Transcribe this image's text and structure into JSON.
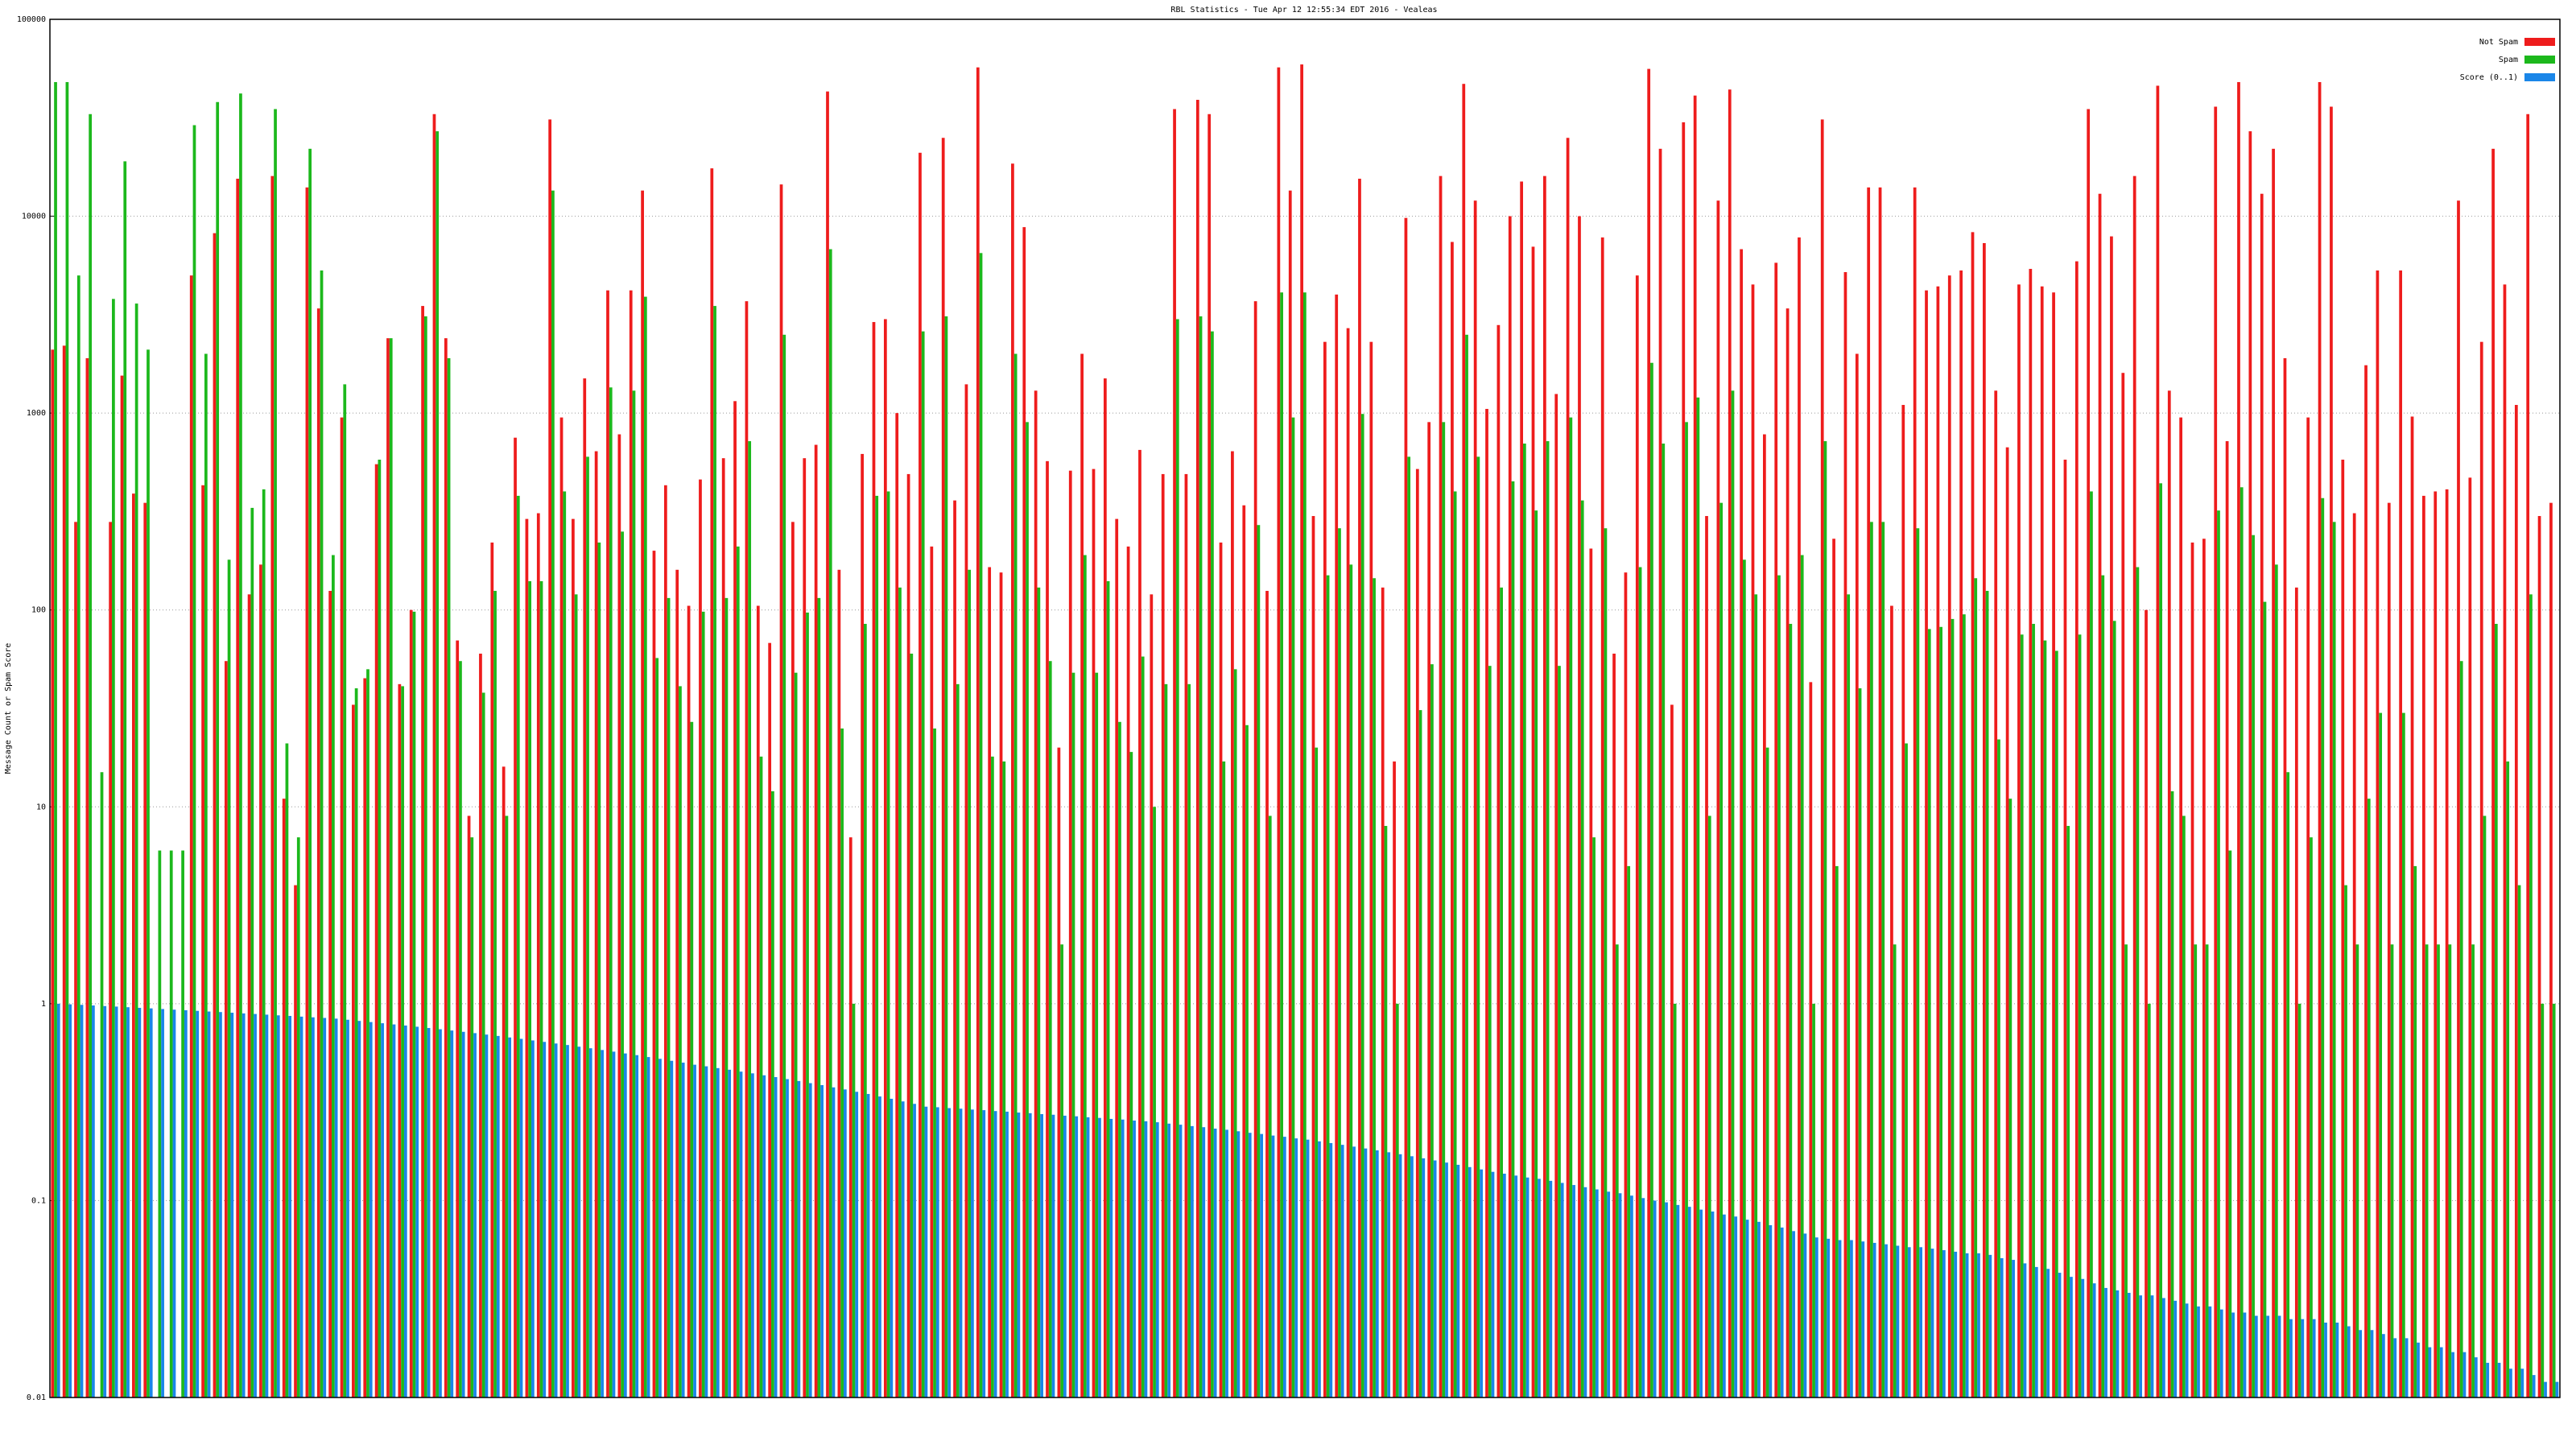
{
  "chart_data": {
    "type": "bar",
    "title": "RBL Statistics - Tue Apr 12 12:55:34 EDT 2016 - Vealeas",
    "y_label": "Message Count or Spam Score",
    "log_scale": true,
    "grid": true,
    "legend": "top-right",
    "ylim": [
      0.01,
      100000
    ],
    "yticks": [
      0.01,
      0.1,
      1,
      10,
      100,
      1000,
      10000,
      100000
    ],
    "categories": [
      null,
      null,
      null,
      null,
      null,
      null,
      null,
      null,
      null,
      null,
      null,
      null,
      null,
      null,
      null,
      null,
      null,
      null,
      null,
      null,
      null,
      null,
      null,
      null,
      null,
      null,
      null,
      null,
      null,
      null,
      null,
      null,
      null,
      null,
      null,
      null,
      null,
      null,
      null,
      null,
      null,
      null,
      null,
      null,
      null,
      null,
      null,
      null,
      null,
      null,
      null,
      null,
      null,
      null,
      null,
      null,
      null,
      null,
      null,
      null,
      null,
      null,
      null,
      null,
      null,
      null,
      null,
      null,
      null,
      null,
      null,
      null,
      null,
      null,
      null,
      null,
      null,
      null,
      null,
      null,
      null,
      null,
      null,
      null,
      null,
      null,
      null,
      null,
      null,
      null,
      null,
      null,
      null,
      null,
      null,
      null,
      null,
      null,
      null,
      null,
      null,
      null,
      null,
      null,
      null,
      null,
      null,
      null,
      null,
      null,
      null,
      null,
      null,
      null,
      null,
      null,
      null,
      null,
      null,
      null,
      null,
      null,
      null,
      null,
      null,
      null,
      null,
      null,
      null,
      null,
      null,
      null,
      null,
      null,
      null,
      null,
      null,
      null,
      null,
      null,
      null,
      null,
      null,
      null,
      null,
      null,
      null,
      null,
      null,
      null,
      null,
      null,
      null,
      null,
      null,
      null,
      null,
      null,
      null,
      null,
      null,
      null,
      null,
      null,
      null,
      null,
      null,
      null,
      null,
      null,
      null,
      null,
      null,
      null,
      null,
      null,
      null,
      null,
      null,
      null,
      null,
      null,
      null,
      null,
      null,
      null,
      null,
      null,
      null,
      null,
      null,
      null,
      null,
      null,
      null,
      null,
      null,
      null,
      null,
      null,
      null,
      null,
      null,
      null,
      null,
      null,
      null,
      null,
      null,
      null,
      null,
      null,
      null,
      null,
      null,
      null,
      null
    ],
    "series": [
      {
        "name": "Not Spam",
        "color": "#ee1c1c",
        "values": [
          2100,
          2200,
          280,
          1900,
          0,
          280,
          1550,
          390,
          350,
          0,
          0,
          0,
          5000,
          430,
          8200,
          55,
          15500,
          120,
          170,
          16000,
          11,
          4,
          14000,
          3400,
          125,
          950,
          33,
          45,
          550,
          2400,
          42,
          100,
          3500,
          33000,
          2400,
          70,
          9,
          60,
          220,
          16,
          750,
          290,
          310,
          31000,
          950,
          290,
          1500,
          640,
          4200,
          780,
          4200,
          13500,
          200,
          430,
          160,
          105,
          460,
          17500,
          590,
          1150,
          3700,
          105,
          68,
          14500,
          280,
          590,
          690,
          43000,
          160,
          7,
          620,
          2900,
          3000,
          1000,
          490,
          21000,
          210,
          25000,
          360,
          1400,
          57000,
          165,
          155,
          18500,
          8800,
          1300,
          570,
          20,
          510,
          2000,
          520,
          1500,
          290,
          210,
          650,
          120,
          490,
          35000,
          490,
          39000,
          33000,
          220,
          640,
          340,
          3700,
          125,
          57000,
          13500,
          59000,
          300,
          2300,
          4000,
          2700,
          15500,
          2300,
          130,
          17,
          9800,
          520,
          900,
          16000,
          7400,
          47000,
          12000,
          1050,
          2800,
          10000,
          15000,
          7000,
          16000,
          1250,
          25000,
          10000,
          205,
          7800,
          60,
          155,
          5000,
          56000,
          22000,
          33,
          30000,
          41000,
          300,
          12000,
          44000,
          6800,
          4500,
          780,
          5800,
          3400,
          7800,
          43,
          31000,
          230,
          5200,
          2000,
          14000,
          14000,
          105,
          1100,
          14000,
          4200,
          4400,
          5000,
          5300,
          8300,
          7300,
          1300,
          670,
          4500,
          5400,
          4400,
          4100,
          580,
          5900,
          35000,
          13000,
          7900,
          1600,
          16000,
          100,
          46000,
          1300,
          950,
          220,
          230,
          36000,
          720,
          48000,
          27000,
          13000,
          22000,
          1900,
          130,
          950,
          48000,
          36000,
          580,
          310,
          1750,
          5300,
          350,
          5300,
          960,
          380,
          400,
          410,
          12000,
          470,
          2300,
          22000,
          4500,
          1100,
          33000,
          300,
          350
        ]
      },
      {
        "name": "Spam",
        "color": "#1cb81c",
        "values": [
          48000,
          48000,
          5000,
          33000,
          15,
          3800,
          19000,
          3600,
          2100,
          6,
          6,
          6,
          29000,
          2000,
          38000,
          180,
          42000,
          330,
          410,
          35000,
          21,
          7,
          22000,
          5300,
          190,
          1400,
          40,
          50,
          580,
          2400,
          41,
          98,
          3100,
          27000,
          1900,
          55,
          7,
          38,
          125,
          9,
          380,
          140,
          140,
          13500,
          400,
          120,
          600,
          220,
          1350,
          250,
          1300,
          3900,
          57,
          115,
          41,
          27,
          98,
          3500,
          115,
          210,
          720,
          18,
          12,
          2500,
          48,
          97,
          115,
          6800,
          25,
          1,
          85,
          380,
          400,
          130,
          60,
          2600,
          25,
          3100,
          42,
          160,
          6500,
          18,
          17,
          2000,
          900,
          130,
          55,
          2,
          48,
          190,
          48,
          140,
          27,
          19,
          58,
          10,
          42,
          3000,
          42,
          3100,
          2600,
          17,
          50,
          26,
          270,
          9,
          4100,
          950,
          4100,
          20,
          150,
          260,
          170,
          990,
          145,
          8,
          1,
          600,
          31,
          53,
          900,
          400,
          2500,
          600,
          52,
          130,
          450,
          700,
          320,
          720,
          52,
          950,
          360,
          7,
          260,
          2,
          5,
          165,
          1800,
          700,
          1,
          900,
          1200,
          9,
          350,
          1300,
          180,
          120,
          20,
          150,
          85,
          190,
          1,
          720,
          5,
          120,
          40,
          280,
          280,
          2,
          21,
          260,
          80,
          82,
          90,
          95,
          145,
          125,
          22,
          11,
          75,
          85,
          70,
          62,
          8,
          75,
          400,
          150,
          88,
          2,
          165,
          1,
          440,
          12,
          9,
          2,
          2,
          320,
          6,
          420,
          240,
          110,
          170,
          15,
          1,
          7,
          370,
          280,
          4,
          2,
          11,
          30,
          2,
          30,
          5,
          2,
          2,
          2,
          55,
          2,
          9,
          85,
          17,
          4,
          120,
          1,
          1
        ]
      },
      {
        "name": "Score (0..1)",
        "color": "#1a86e8",
        "values": [
          1.0,
          0.993,
          0.987,
          0.98,
          0.973,
          0.967,
          0.96,
          0.953,
          0.947,
          0.94,
          0.933,
          0.927,
          0.92,
          0.913,
          0.907,
          0.9,
          0.893,
          0.887,
          0.88,
          0.873,
          0.867,
          0.86,
          0.853,
          0.847,
          0.84,
          0.829,
          0.818,
          0.807,
          0.796,
          0.785,
          0.775,
          0.764,
          0.753,
          0.742,
          0.731,
          0.72,
          0.709,
          0.697,
          0.686,
          0.674,
          0.663,
          0.651,
          0.64,
          0.628,
          0.617,
          0.605,
          0.594,
          0.582,
          0.571,
          0.559,
          0.548,
          0.536,
          0.525,
          0.513,
          0.502,
          0.49,
          0.481,
          0.471,
          0.462,
          0.452,
          0.443,
          0.433,
          0.424,
          0.414,
          0.405,
          0.395,
          0.386,
          0.376,
          0.367,
          0.357,
          0.348,
          0.338,
          0.329,
          0.319,
          0.31,
          0.3,
          0.298,
          0.295,
          0.293,
          0.29,
          0.288,
          0.285,
          0.283,
          0.28,
          0.278,
          0.275,
          0.273,
          0.27,
          0.268,
          0.265,
          0.263,
          0.26,
          0.258,
          0.255,
          0.253,
          0.25,
          0.246,
          0.243,
          0.239,
          0.236,
          0.232,
          0.229,
          0.225,
          0.221,
          0.218,
          0.214,
          0.211,
          0.207,
          0.204,
          0.2,
          0.196,
          0.192,
          0.188,
          0.184,
          0.18,
          0.176,
          0.172,
          0.168,
          0.164,
          0.16,
          0.156,
          0.152,
          0.148,
          0.144,
          0.14,
          0.137,
          0.134,
          0.131,
          0.129,
          0.126,
          0.123,
          0.12,
          0.117,
          0.114,
          0.111,
          0.109,
          0.106,
          0.103,
          0.1,
          0.098,
          0.095,
          0.093,
          0.09,
          0.088,
          0.085,
          0.083,
          0.08,
          0.078,
          0.075,
          0.073,
          0.07,
          0.068,
          0.065,
          0.064,
          0.063,
          0.063,
          0.062,
          0.061,
          0.06,
          0.059,
          0.058,
          0.058,
          0.057,
          0.056,
          0.055,
          0.054,
          0.054,
          0.053,
          0.051,
          0.05,
          0.048,
          0.046,
          0.045,
          0.043,
          0.041,
          0.04,
          0.038,
          0.036,
          0.035,
          0.034,
          0.033,
          0.033,
          0.032,
          0.031,
          0.03,
          0.029,
          0.029,
          0.028,
          0.027,
          0.027,
          0.026,
          0.026,
          0.026,
          0.025,
          0.025,
          0.025,
          0.024,
          0.024,
          0.023,
          0.022,
          0.022,
          0.021,
          0.02,
          0.02,
          0.019,
          0.018,
          0.018,
          0.017,
          0.017,
          0.016,
          0.015,
          0.015,
          0.014,
          0.014,
          0.013,
          0.012,
          0.012
        ]
      }
    ]
  }
}
